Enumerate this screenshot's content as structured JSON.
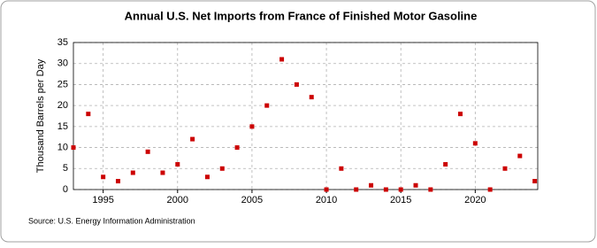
{
  "chart_data": {
    "type": "scatter",
    "title": "Annual U.S. Net Imports from France of Finished Motor Gasoline",
    "y_label": "Thousand Barrels per Day",
    "source": "Source: U.S. Energy Information Administration",
    "x": [
      1993,
      1994,
      1995,
      1996,
      1997,
      1998,
      1999,
      2000,
      2001,
      2002,
      2003,
      2004,
      2005,
      2006,
      2007,
      2008,
      2009,
      2010,
      2011,
      2012,
      2013,
      2014,
      2015,
      2016,
      2017,
      2018,
      2019,
      2020,
      2021,
      2022,
      2023,
      2024
    ],
    "values": [
      10,
      18,
      3,
      2,
      4,
      9,
      4,
      6,
      12,
      3,
      5,
      10,
      15,
      20,
      31,
      25,
      22,
      0,
      5,
      0,
      1,
      0,
      0,
      1,
      0,
      6,
      18,
      11,
      0,
      5,
      8,
      2
    ],
    "color": "#cc0000",
    "xlim": [
      1993,
      2024.2
    ],
    "xticks": [
      1995,
      2000,
      2005,
      2010,
      2015,
      2020
    ],
    "ylim": [
      0,
      35
    ],
    "yticks": [
      0,
      5,
      10,
      15,
      20,
      25,
      30,
      35
    ],
    "grid": true
  }
}
